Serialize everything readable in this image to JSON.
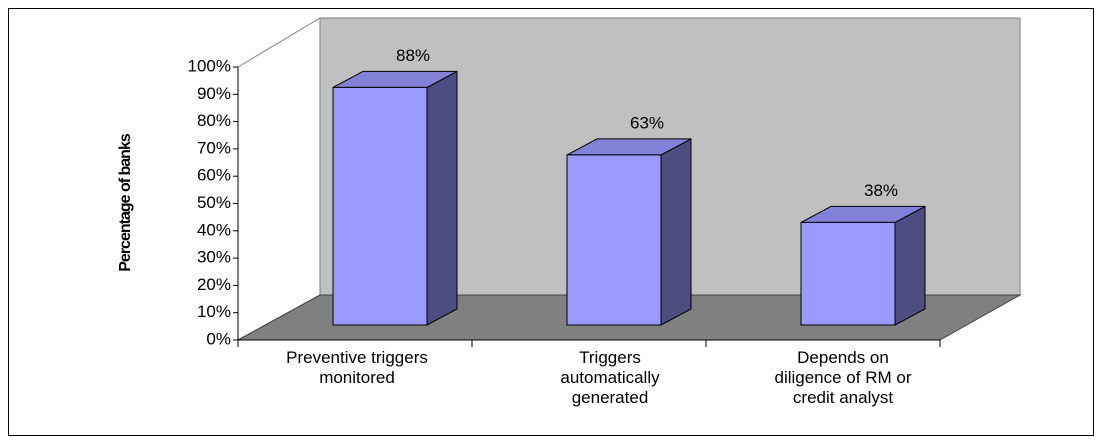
{
  "chart_data": {
    "type": "bar3d",
    "y_label": "Percentage of banks",
    "categories": [
      "Preventive triggers monitored",
      "Triggers automatically generated",
      "Depends on diligence of RM or credit analyst"
    ],
    "values": [
      88,
      63,
      38
    ],
    "value_labels": [
      "88%",
      "63%",
      "38%"
    ],
    "color": "#9999ff",
    "ylim": [
      0,
      100
    ],
    "yticks": [
      {
        "value": 0,
        "label": "0%"
      },
      {
        "value": 10,
        "label": "10%"
      },
      {
        "value": 20,
        "label": "20%"
      },
      {
        "value": 30,
        "label": "30%"
      },
      {
        "value": 40,
        "label": "40%"
      },
      {
        "value": 50,
        "label": "50%"
      },
      {
        "value": 60,
        "label": "60%"
      },
      {
        "value": 70,
        "label": "70%"
      },
      {
        "value": 80,
        "label": "80%"
      },
      {
        "value": 90,
        "label": "90%"
      },
      {
        "value": 100,
        "label": "100%"
      }
    ]
  }
}
